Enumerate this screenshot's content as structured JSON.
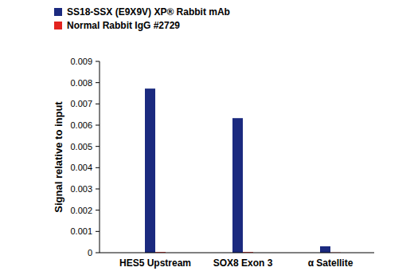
{
  "chart_data": {
    "type": "bar",
    "y_label": "Signal relative to input",
    "categories": [
      "HES5 Upstream",
      "SOX8 Exon 3",
      "α Satellite"
    ],
    "series": [
      {
        "name": "SS18-SSX (E9X9V) XP® Rabbit mAb",
        "color": "#1b2a7f",
        "values": [
          0.00772,
          0.00633,
          0.0003
        ]
      },
      {
        "name": "Normal Rabbit IgG #2729",
        "color": "#e3241f",
        "values": [
          3e-05,
          3e-05,
          1e-05
        ]
      }
    ],
    "ylim": [
      0,
      0.009
    ],
    "yticks": [
      0,
      0.001,
      0.002,
      0.003,
      0.004,
      0.005,
      0.006,
      0.007,
      0.008,
      0.009
    ],
    "grid": false,
    "legend": "top-left"
  }
}
